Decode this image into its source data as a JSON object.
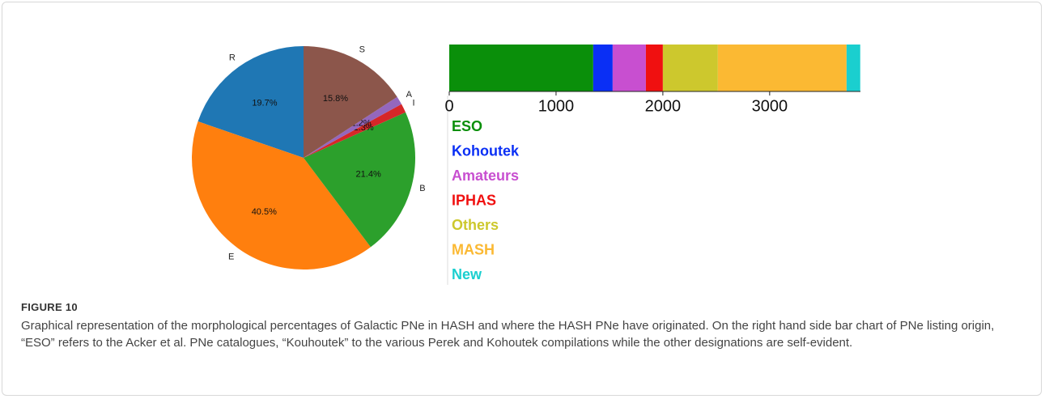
{
  "chart_data": [
    {
      "type": "pie",
      "categories": [
        "R",
        "E",
        "B",
        "I",
        "A",
        "S"
      ],
      "values": [
        19.7,
        40.5,
        21.4,
        1.3,
        1.2,
        15.8
      ],
      "value_labels": [
        "19.7%",
        "40.5%",
        "21.4%",
        "1.3%",
        "1.2%",
        "15.8%"
      ],
      "colors": [
        "#1f77b4",
        "#ff7f0e",
        "#2ca02c",
        "#d62728",
        "#9467bd",
        "#8c564b"
      ]
    },
    {
      "type": "bar",
      "orientation": "horizontal",
      "stacked": true,
      "xlim": [
        0,
        3850
      ],
      "xticks": [
        0,
        1000,
        2000,
        3000
      ],
      "series": [
        {
          "name": "ESO",
          "color": "#0a8f0a",
          "values": [
            1348
          ]
        },
        {
          "name": "Kohoutek",
          "color": "#0a2ff5",
          "values": [
            182
          ]
        },
        {
          "name": "Amateurs",
          "color": "#c84fd0",
          "values": [
            311
          ]
        },
        {
          "name": "IPHAS",
          "color": "#f01010",
          "values": [
            159
          ]
        },
        {
          "name": "Others",
          "color": "#cdc82d",
          "values": [
            515
          ]
        },
        {
          "name": "MASH",
          "color": "#fbb933",
          "values": [
            1205
          ]
        },
        {
          "name": "New",
          "color": "#1acfcf",
          "values": [
            128
          ]
        }
      ]
    }
  ],
  "figure": {
    "label": "FIGURE 10",
    "caption": "Graphical representation of the morphological percentages of Galactic PNe in HASH and where the HASH PNe have originated. On the right hand side bar chart of PNe listing origin, “ESO” refers to the Acker et al. PNe catalogues, “Kouhoutek” to the various Perek and Kohoutek compilations while the other designations are self-evident."
  }
}
